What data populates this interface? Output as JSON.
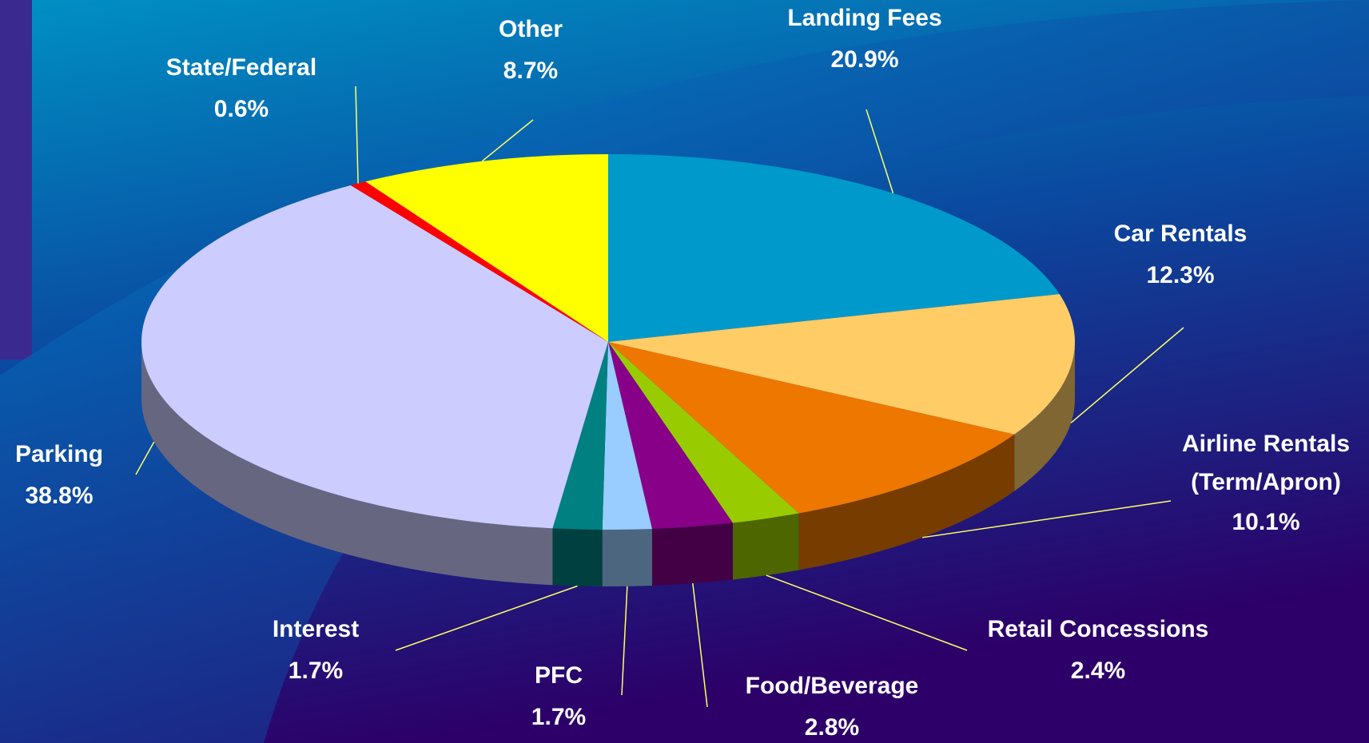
{
  "chart_data": {
    "type": "pie3d",
    "categories": [
      "Landing Fees",
      "Car Rentals",
      "Airline Rentals (Term/Apron)",
      "Retail Concessions",
      "Food/Beverage",
      "PFC",
      "Interest",
      "Parking",
      "State/Federal",
      "Other"
    ],
    "values": [
      20.9,
      12.3,
      10.1,
      2.4,
      2.8,
      1.7,
      1.7,
      38.8,
      0.6,
      8.7
    ],
    "value_labels": [
      "20.9%",
      "12.3%",
      "10.1%",
      "2.4%",
      "2.8%",
      "1.7%",
      "1.7%",
      "38.8%",
      "0.6%",
      "8.7%"
    ],
    "colors": [
      "#0099cc",
      "#ffcc66",
      "#ee7700",
      "#99cc00",
      "#880088",
      "#99ccff",
      "#008080",
      "#ccccff",
      "#ff0000",
      "#ffff00"
    ]
  }
}
